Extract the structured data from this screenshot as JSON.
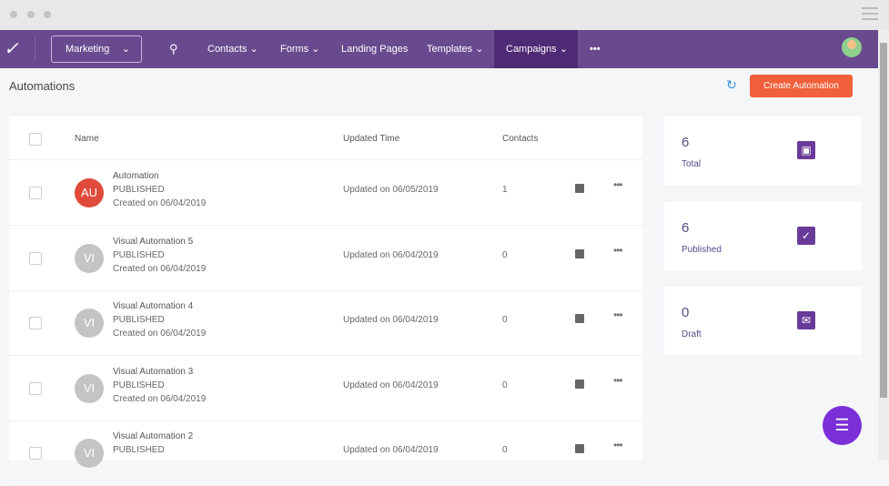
{
  "nav": {
    "workspace": "Marketing",
    "items": [
      "Contacts",
      "Forms",
      "Landing Pages",
      "Templates",
      "Campaigns"
    ],
    "active": "Campaigns",
    "more": "•••"
  },
  "page": {
    "title": "Automations",
    "create_label": "Create Automation"
  },
  "table": {
    "headers": {
      "name": "Name",
      "updated": "Updated Time",
      "contacts": "Contacts"
    },
    "rows": [
      {
        "initials": "AU",
        "name": "Automation",
        "status": "PUBLISHED",
        "created": "Created on 06/04/2019",
        "updated": "Updated on 06/05/2019",
        "contacts": "1",
        "color": "#e04a3a"
      },
      {
        "initials": "VI",
        "name": "Visual Automation 5",
        "status": "PUBLISHED",
        "created": "Created on 06/04/2019",
        "updated": "Updated on 06/04/2019",
        "contacts": "0",
        "color": "#c4c4c4"
      },
      {
        "initials": "VI",
        "name": "Visual Automation 4",
        "status": "PUBLISHED",
        "created": "Created on 06/04/2019",
        "updated": "Updated on 06/04/2019",
        "contacts": "0",
        "color": "#c4c4c4"
      },
      {
        "initials": "VI",
        "name": "Visual Automation 3",
        "status": "PUBLISHED",
        "created": "Created on 06/04/2019",
        "updated": "Updated on 06/04/2019",
        "contacts": "0",
        "color": "#c4c4c4"
      },
      {
        "initials": "VI",
        "name": "Visual Automation 2",
        "status": "PUBLISHED",
        "created": "",
        "updated": "Updated on 06/04/2019",
        "contacts": "0",
        "color": "#c4c4c4"
      }
    ]
  },
  "stats": [
    {
      "value": "6",
      "label": "Total",
      "icon": "save-icon"
    },
    {
      "value": "6",
      "label": "Published",
      "icon": "clipboard-check-icon"
    },
    {
      "value": "0",
      "label": "Draft",
      "icon": "envelope-icon"
    }
  ],
  "colors": {
    "nav": "#6a4a8f",
    "accent": "#f0603a",
    "stat": "#6a3a98"
  }
}
